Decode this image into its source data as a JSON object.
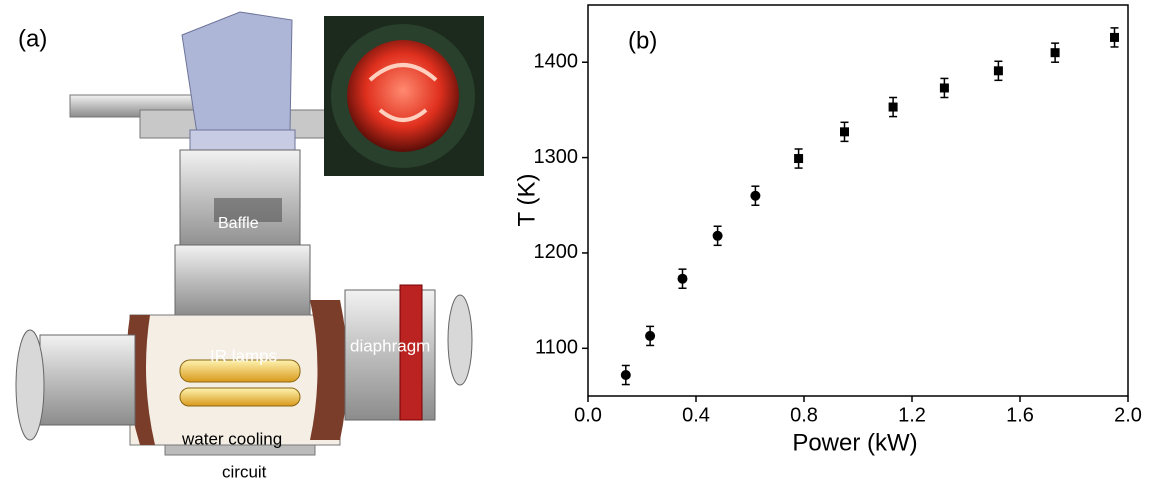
{
  "panel_a": {
    "label": "(a)",
    "baffle": "Baffle",
    "lamps": "IR lamps",
    "diaphragm": "diaphragm",
    "water_cooling": [
      "water cooling",
      "circuit"
    ]
  },
  "chart_data": {
    "type": "scatter",
    "panel_label": "(b)",
    "x_label": "Power (kW)",
    "y_label": "T (K)",
    "xlim": [
      0,
      2
    ],
    "ylim": [
      1050,
      1460
    ],
    "xticks": [
      {
        "value": 0,
        "label": "0.0"
      },
      0.4,
      0.8,
      1.2,
      1.6,
      {
        "value": 2,
        "label": "2.0"
      }
    ],
    "yticks": [
      1100,
      1200,
      1300,
      1400
    ],
    "series": [
      {
        "marker": "circle",
        "color": "#000000",
        "x": [
          0.14,
          0.23,
          0.35,
          0.48,
          0.62
        ],
        "values": [
          1072,
          1113,
          1173,
          1218,
          1260
        ],
        "errors": [
          10,
          10,
          10,
          10,
          10
        ]
      },
      {
        "marker": "square",
        "color": "#000000",
        "x": [
          0.78,
          0.95,
          1.13,
          1.32,
          1.52,
          1.73,
          1.95
        ],
        "values": [
          1299,
          1327,
          1353,
          1373,
          1391,
          1410,
          1426
        ],
        "errors": [
          10,
          10,
          10,
          10,
          10,
          10,
          10
        ]
      }
    ]
  }
}
